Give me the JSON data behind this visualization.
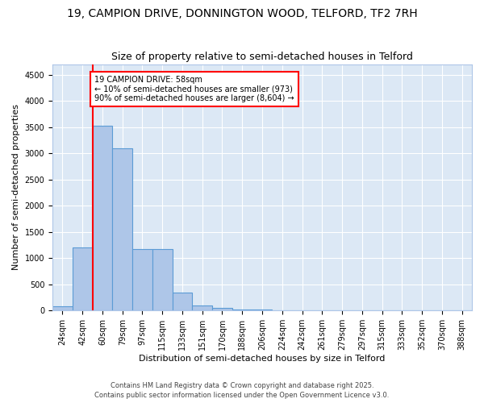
{
  "title1": "19, CAMPION DRIVE, DONNINGTON WOOD, TELFORD, TF2 7RH",
  "title2": "Size of property relative to semi-detached houses in Telford",
  "xlabel": "Distribution of semi-detached houses by size in Telford",
  "ylabel": "Number of semi-detached properties",
  "bar_labels": [
    "24sqm",
    "42sqm",
    "60sqm",
    "79sqm",
    "97sqm",
    "115sqm",
    "133sqm",
    "151sqm",
    "170sqm",
    "188sqm",
    "206sqm",
    "224sqm",
    "242sqm",
    "261sqm",
    "279sqm",
    "297sqm",
    "315sqm",
    "333sqm",
    "352sqm",
    "370sqm",
    "388sqm"
  ],
  "bar_values": [
    75,
    1200,
    3520,
    3100,
    1170,
    1170,
    350,
    100,
    50,
    25,
    15,
    10,
    2,
    1,
    1,
    0,
    0,
    0,
    0,
    0,
    0
  ],
  "bar_color": "#aec6e8",
  "bar_edge_color": "#5b9bd5",
  "vline_color": "red",
  "annotation_text": "19 CAMPION DRIVE: 58sqm\n← 10% of semi-detached houses are smaller (973)\n90% of semi-detached houses are larger (8,604) →",
  "annotation_box_color": "white",
  "annotation_box_edge": "red",
  "ylim": [
    0,
    4700
  ],
  "yticks": [
    0,
    500,
    1000,
    1500,
    2000,
    2500,
    3000,
    3500,
    4000,
    4500
  ],
  "background_color": "#dce8f5",
  "grid_color": "white",
  "footer1": "Contains HM Land Registry data © Crown copyright and database right 2025.",
  "footer2": "Contains public sector information licensed under the Open Government Licence v3.0.",
  "title_fontsize": 10,
  "subtitle_fontsize": 9,
  "axis_label_fontsize": 8,
  "tick_fontsize": 7,
  "annotation_fontsize": 7
}
